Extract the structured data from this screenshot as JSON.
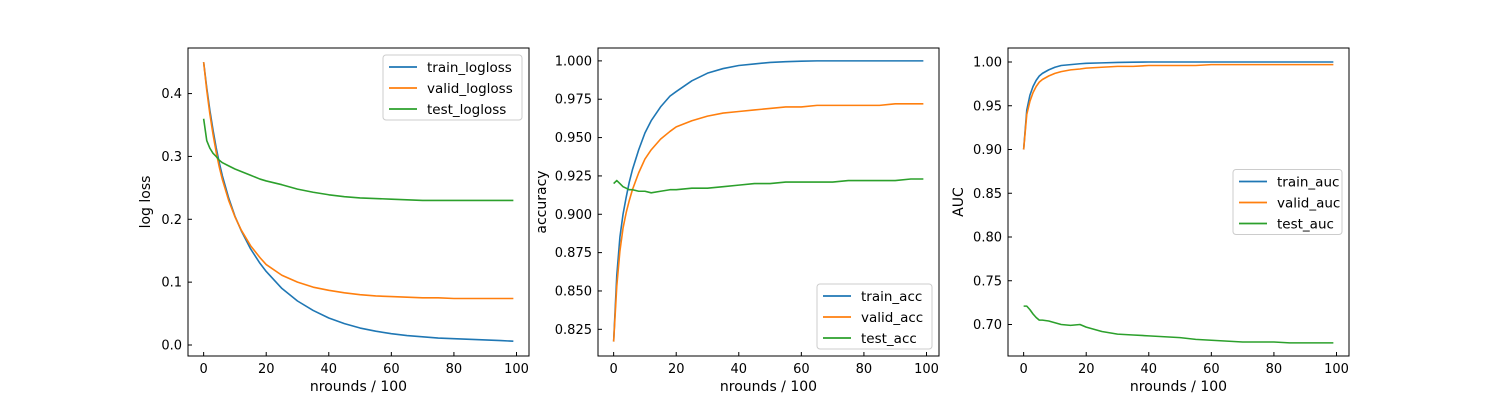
{
  "chart_data": [
    {
      "type": "line",
      "xlabel": "nrounds / 100",
      "ylabel": "log loss",
      "xlim": [
        -5,
        104
      ],
      "ylim": [
        -0.0175,
        0.4725
      ],
      "xticks": [
        0,
        20,
        40,
        60,
        80,
        100
      ],
      "yticks": [
        0.0,
        0.1,
        0.2,
        0.3,
        0.4
      ],
      "ytick_labels": [
        "0.0",
        "0.1",
        "0.2",
        "0.3",
        "0.4"
      ],
      "legend_position": "upper right",
      "x": [
        0,
        1,
        2,
        3,
        4,
        5,
        6,
        8,
        10,
        12,
        15,
        18,
        20,
        25,
        30,
        35,
        40,
        45,
        50,
        55,
        60,
        65,
        70,
        75,
        80,
        85,
        90,
        95,
        99
      ],
      "series": [
        {
          "name": "train_logloss",
          "color": "#1f77b4",
          "values": [
            0.45,
            0.409,
            0.373,
            0.342,
            0.314,
            0.29,
            0.269,
            0.234,
            0.205,
            0.182,
            0.153,
            0.13,
            0.117,
            0.09,
            0.07,
            0.055,
            0.043,
            0.034,
            0.027,
            0.022,
            0.018,
            0.015,
            0.013,
            0.011,
            0.01,
            0.009,
            0.008,
            0.007,
            0.006
          ]
        },
        {
          "name": "valid_logloss",
          "color": "#ff7f0e",
          "values": [
            0.45,
            0.405,
            0.367,
            0.335,
            0.307,
            0.283,
            0.263,
            0.23,
            0.204,
            0.183,
            0.158,
            0.139,
            0.128,
            0.111,
            0.1,
            0.092,
            0.087,
            0.083,
            0.08,
            0.078,
            0.077,
            0.076,
            0.075,
            0.075,
            0.074,
            0.074,
            0.074,
            0.074,
            0.074
          ]
        },
        {
          "name": "test_logloss",
          "color": "#2ca02c",
          "values": [
            0.36,
            0.325,
            0.313,
            0.305,
            0.3,
            0.294,
            0.29,
            0.285,
            0.28,
            0.276,
            0.27,
            0.264,
            0.261,
            0.255,
            0.248,
            0.243,
            0.239,
            0.236,
            0.234,
            0.233,
            0.232,
            0.231,
            0.23,
            0.23,
            0.23,
            0.23,
            0.23,
            0.23,
            0.23
          ]
        }
      ]
    },
    {
      "type": "line",
      "xlabel": "nrounds / 100",
      "ylabel": "accuracy",
      "xlim": [
        -5,
        104
      ],
      "ylim": [
        0.8076,
        1.0084
      ],
      "xticks": [
        0,
        20,
        40,
        60,
        80,
        100
      ],
      "yticks": [
        0.825,
        0.85,
        0.875,
        0.9,
        0.925,
        0.95,
        0.975,
        1.0
      ],
      "ytick_labels": [
        "0.825",
        "0.850",
        "0.875",
        "0.900",
        "0.925",
        "0.950",
        "0.975",
        "1.000"
      ],
      "legend_position": "lower right",
      "x": [
        0,
        1,
        2,
        3,
        4,
        5,
        6,
        8,
        10,
        12,
        15,
        18,
        20,
        25,
        30,
        35,
        40,
        45,
        50,
        55,
        60,
        65,
        70,
        75,
        80,
        85,
        90,
        95,
        99
      ],
      "series": [
        {
          "name": "train_acc",
          "color": "#1f77b4",
          "values": [
            0.817,
            0.86,
            0.885,
            0.9,
            0.911,
            0.921,
            0.929,
            0.942,
            0.953,
            0.961,
            0.97,
            0.977,
            0.98,
            0.987,
            0.992,
            0.995,
            0.997,
            0.998,
            0.999,
            0.9995,
            0.9998,
            1.0,
            1.0,
            1.0,
            1.0,
            1.0,
            1.0,
            1.0,
            1.0
          ]
        },
        {
          "name": "valid_acc",
          "color": "#ff7f0e",
          "values": [
            0.817,
            0.853,
            0.876,
            0.891,
            0.901,
            0.909,
            0.916,
            0.927,
            0.936,
            0.942,
            0.949,
            0.954,
            0.957,
            0.961,
            0.964,
            0.966,
            0.967,
            0.968,
            0.969,
            0.97,
            0.97,
            0.971,
            0.971,
            0.971,
            0.971,
            0.971,
            0.972,
            0.972,
            0.972
          ]
        },
        {
          "name": "test_acc",
          "color": "#2ca02c",
          "values": [
            0.92,
            0.922,
            0.92,
            0.918,
            0.917,
            0.916,
            0.916,
            0.915,
            0.915,
            0.914,
            0.915,
            0.916,
            0.916,
            0.917,
            0.917,
            0.918,
            0.919,
            0.92,
            0.92,
            0.921,
            0.921,
            0.921,
            0.921,
            0.922,
            0.922,
            0.922,
            0.922,
            0.923,
            0.923
          ]
        }
      ]
    },
    {
      "type": "line",
      "xlabel": "nrounds / 100",
      "ylabel": "AUC",
      "xlim": [
        -5,
        104
      ],
      "ylim": [
        0.664,
        1.016
      ],
      "xticks": [
        0,
        20,
        40,
        60,
        80,
        100
      ],
      "yticks": [
        0.7,
        0.75,
        0.8,
        0.85,
        0.9,
        0.95,
        1.0
      ],
      "ytick_labels": [
        "0.70",
        "0.75",
        "0.80",
        "0.85",
        "0.90",
        "0.95",
        "1.00"
      ],
      "legend_position": "center right",
      "x": [
        0,
        1,
        2,
        3,
        4,
        5,
        6,
        8,
        10,
        12,
        15,
        18,
        20,
        25,
        30,
        35,
        40,
        45,
        50,
        55,
        60,
        65,
        70,
        75,
        80,
        85,
        90,
        95,
        99
      ],
      "series": [
        {
          "name": "train_auc",
          "color": "#1f77b4",
          "values": [
            0.9,
            0.945,
            0.962,
            0.972,
            0.979,
            0.984,
            0.987,
            0.991,
            0.994,
            0.996,
            0.997,
            0.998,
            0.9985,
            0.999,
            0.9995,
            0.9998,
            1.0,
            1.0,
            1.0,
            1.0,
            1.0,
            1.0,
            1.0,
            1.0,
            1.0,
            1.0,
            1.0,
            1.0,
            1.0
          ]
        },
        {
          "name": "valid_auc",
          "color": "#ff7f0e",
          "values": [
            0.9,
            0.94,
            0.955,
            0.965,
            0.972,
            0.977,
            0.98,
            0.984,
            0.987,
            0.989,
            0.991,
            0.992,
            0.993,
            0.994,
            0.995,
            0.995,
            0.996,
            0.996,
            0.996,
            0.996,
            0.997,
            0.997,
            0.997,
            0.997,
            0.997,
            0.997,
            0.997,
            0.997,
            0.997
          ]
        },
        {
          "name": "test_auc",
          "color": "#2ca02c",
          "values": [
            0.721,
            0.721,
            0.717,
            0.712,
            0.708,
            0.705,
            0.705,
            0.704,
            0.702,
            0.7,
            0.699,
            0.7,
            0.697,
            0.692,
            0.689,
            0.688,
            0.687,
            0.686,
            0.685,
            0.683,
            0.682,
            0.681,
            0.68,
            0.68,
            0.68,
            0.679,
            0.679,
            0.679,
            0.679
          ]
        }
      ]
    }
  ]
}
